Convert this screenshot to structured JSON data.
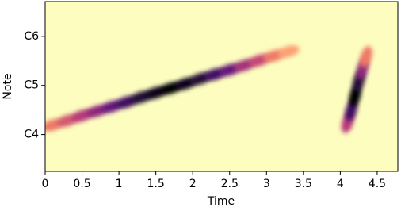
{
  "chart_data": {
    "type": "spectrogram",
    "xlabel": "Time",
    "ylabel": "Note",
    "xlim": [
      0,
      4.78
    ],
    "ylim": [
      51,
      92.5
    ],
    "xticks": [
      0,
      0.5,
      1,
      1.5,
      2,
      2.5,
      3,
      3.5,
      4,
      4.5
    ],
    "yticks": [
      {
        "value": 60,
        "label": "C4"
      },
      {
        "value": 72,
        "label": "C5"
      },
      {
        "value": 84,
        "label": "C6"
      }
    ],
    "colormap": [
      "#fcfdbf",
      "#fc8961",
      "#b73779",
      "#51127c",
      "#000004"
    ],
    "series": [
      {
        "x": [
          0.1,
          0.3,
          0.5,
          0.7,
          0.9,
          1.1,
          1.3,
          1.5,
          1.7,
          1.9,
          2.1,
          2.3,
          2.5,
          2.7,
          2.9,
          3.1,
          3.3
        ],
        "values": [
          62.3,
          63.4,
          64.6,
          65.7,
          66.8,
          67.9,
          69.1,
          70.2,
          71.3,
          72.4,
          73.6,
          74.7,
          75.8,
          76.9,
          78.1,
          79.2,
          80.3
        ],
        "magnitude": [
          0.3,
          0.4,
          0.5,
          0.6,
          0.7,
          0.8,
          0.9,
          0.95,
          1,
          0.95,
          0.9,
          0.8,
          0.7,
          0.55,
          0.45,
          0.3,
          0.2
        ]
      },
      {
        "x": [
          4.1,
          4.15,
          4.2,
          4.25,
          4.3,
          4.35
        ],
        "values": [
          63,
          66,
          69.5,
          73,
          76,
          79
        ],
        "magnitude": [
          0.5,
          0.8,
          1,
          0.9,
          0.6,
          0.3
        ]
      }
    ]
  }
}
